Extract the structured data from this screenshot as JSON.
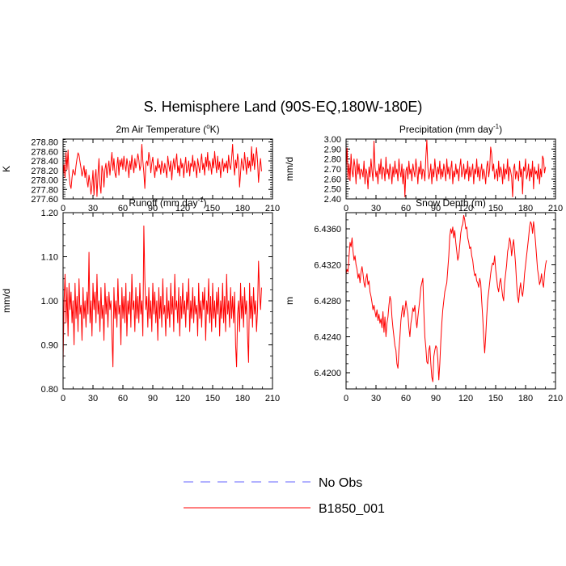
{
  "title": "S. Hemisphere Land (90S-EQ,180W-180E)",
  "colors": {
    "model": "#ff0000",
    "obs": "#6666ff",
    "axis": "#000000"
  },
  "legend": {
    "placement": "bottom-center",
    "entries": [
      {
        "label": "No Obs",
        "style": "dashed",
        "color": "#6666ff"
      },
      {
        "label": "B1850_001",
        "style": "solid",
        "color": "#ff0000"
      }
    ]
  },
  "chart_data": [
    {
      "type": "line",
      "title": "2m Air Temperature (",
      "title_sup": "o",
      "title_suffix": "K)",
      "ylabel": "K",
      "xlim": [
        0,
        210
      ],
      "ylim": [
        277.6,
        278.86
      ],
      "xticks": [
        0,
        30,
        60,
        90,
        120,
        150,
        180,
        210
      ],
      "yticks": [
        277.6,
        277.8,
        278.0,
        278.2,
        278.4,
        278.6,
        278.8
      ],
      "ytick_labels": [
        "277.60",
        "277.80",
        "278.00",
        "278.20",
        "278.40",
        "278.60",
        "278.80"
      ],
      "series": [
        {
          "name": "B1850_001",
          "values": [
            278.1,
            278.32,
            278.05,
            278.58,
            278.22,
            278.63,
            278.12,
            277.9,
            277.82,
            278.05,
            278.22,
            278.15,
            278.1,
            278.3,
            278.45,
            278.57,
            278.52,
            278.38,
            278.25,
            278.08,
            278.18,
            278.3,
            278.05,
            278.22,
            277.98,
            277.85,
            278.1,
            277.95,
            277.7,
            277.9,
            278.2,
            277.68,
            278.05,
            278.22,
            277.65,
            278.1,
            278.45,
            277.9,
            277.72,
            278.3,
            278.18,
            277.85,
            278.22,
            278.35,
            278.05,
            278.25,
            278.4,
            278.1,
            278.35,
            278.58,
            278.2,
            278.45,
            278.15,
            278.05,
            278.3,
            278.48,
            278.1,
            278.42,
            278.28,
            278.45,
            278.22,
            278.5,
            278.32,
            278.18,
            278.45,
            278.3,
            278.05,
            278.4,
            278.22,
            278.52,
            278.3,
            278.15,
            278.45,
            278.25,
            278.38,
            278.55,
            278.42,
            278.2,
            278.3,
            278.75,
            278.4,
            278.15,
            277.82,
            278.35,
            278.4,
            278.3,
            278.58,
            278.45,
            278.15,
            278.35,
            278.48,
            278.22,
            278.05,
            278.3,
            278.18,
            278.45,
            278.25,
            278.32,
            278.12,
            278.4,
            278.28,
            278.15,
            278.35,
            278.22,
            278.05,
            278.5,
            278.32,
            278.18,
            278.4,
            278.0,
            278.28,
            278.45,
            278.22,
            278.38,
            278.55,
            278.15,
            278.3,
            278.08,
            278.45,
            278.25,
            278.35,
            278.05,
            278.3,
            278.48,
            278.15,
            278.22,
            278.4,
            278.08,
            278.35,
            278.28,
            278.52,
            278.18,
            278.4,
            278.25,
            278.05,
            278.45,
            278.3,
            278.15,
            278.38,
            278.55,
            278.22,
            278.35,
            278.1,
            278.48,
            278.28,
            278.58,
            278.2,
            278.4,
            278.3,
            278.12,
            278.45,
            278.25,
            278.6,
            278.35,
            278.15,
            278.5,
            278.22,
            278.38,
            278.05,
            278.3,
            278.45,
            278.18,
            278.35,
            278.25,
            278.4,
            278.15,
            278.52,
            278.3,
            278.22,
            278.45,
            278.75,
            278.35,
            278.1,
            278.42,
            278.25,
            278.55,
            278.38,
            277.85,
            278.15,
            278.45,
            278.3,
            278.2,
            278.58,
            278.35,
            278.12,
            278.48,
            278.25,
            278.4,
            278.18,
            278.7,
            278.3,
            278.55,
            278.22,
            278.45,
            278.68,
            278.4,
            277.95,
            278.25,
            278.45,
            278.18
          ]
        }
      ]
    },
    {
      "type": "line",
      "title": "Precipitation (mm day",
      "title_sup": "-1",
      "title_suffix": ")",
      "ylabel": "mm/d",
      "xlim": [
        0,
        210
      ],
      "ylim": [
        2.4,
        3.0
      ],
      "xticks": [
        0,
        30,
        60,
        90,
        120,
        150,
        180,
        210
      ],
      "yticks": [
        2.4,
        2.5,
        2.6,
        2.7,
        2.8,
        2.9,
        3.0
      ],
      "ytick_labels": [
        "2.40",
        "2.50",
        "2.60",
        "2.70",
        "2.80",
        "2.90",
        "3.00"
      ],
      "series": [
        {
          "name": "B1850_001",
          "values": [
            2.7,
            2.91,
            2.6,
            2.75,
            2.58,
            2.85,
            2.68,
            2.62,
            2.8,
            2.72,
            2.55,
            2.8,
            2.65,
            2.75,
            2.6,
            2.7,
            2.68,
            2.62,
            2.78,
            2.55,
            2.7,
            2.65,
            2.5,
            2.72,
            2.62,
            2.8,
            2.68,
            2.58,
            2.98,
            2.72,
            2.62,
            2.68,
            2.55,
            2.75,
            2.65,
            2.8,
            2.6,
            2.72,
            2.7,
            2.58,
            2.82,
            2.65,
            2.7,
            2.6,
            2.75,
            2.68,
            2.55,
            2.72,
            2.62,
            2.78,
            2.65,
            2.7,
            2.58,
            2.8,
            2.68,
            2.62,
            2.75,
            2.55,
            2.7,
            2.42,
            2.68,
            2.72,
            2.6,
            2.78,
            2.65,
            2.7,
            2.58,
            2.75,
            2.68,
            2.62,
            2.8,
            2.7,
            2.55,
            2.72,
            2.65,
            2.78,
            2.6,
            2.7,
            2.68,
            2.58,
            2.82,
            2.99,
            2.72,
            2.6,
            2.65,
            2.75,
            2.55,
            2.7,
            2.62,
            2.8,
            2.68,
            2.58,
            2.72,
            2.65,
            2.78,
            2.6,
            2.7,
            2.62,
            2.75,
            2.68,
            2.58,
            2.8,
            2.65,
            2.72,
            2.6,
            2.7,
            2.78,
            2.55,
            2.68,
            2.62,
            2.75,
            2.65,
            2.7,
            2.58,
            2.72,
            2.8,
            2.62,
            2.68,
            2.75,
            2.6,
            2.7,
            2.65,
            2.78,
            2.58,
            2.72,
            2.62,
            2.68,
            2.75,
            2.55,
            2.7,
            2.65,
            2.8,
            2.62,
            2.72,
            2.58,
            2.68,
            2.75,
            2.6,
            2.7,
            2.65,
            2.55,
            2.72,
            2.78,
            2.62,
            2.7,
            2.92,
            2.85,
            2.68,
            2.75,
            2.6,
            2.65,
            2.7,
            2.58,
            2.78,
            2.62,
            2.72,
            2.68,
            2.55,
            2.75,
            2.6,
            2.7,
            2.65,
            2.8,
            2.58,
            2.72,
            2.68,
            2.62,
            2.42,
            2.7,
            2.75,
            2.6,
            2.68,
            2.65,
            2.58,
            2.78,
            2.62,
            2.7,
            2.45,
            2.72,
            2.68,
            2.8,
            2.6,
            2.65,
            2.75,
            2.58,
            2.7,
            2.62,
            2.78,
            2.5,
            2.72,
            2.65,
            2.68,
            2.6,
            2.75,
            2.55,
            2.7,
            2.62,
            2.83,
            2.8,
            2.66,
            2.72
          ]
        }
      ]
    },
    {
      "type": "line",
      "title": "Runoff (mm day",
      "title_sup": "-1",
      "title_suffix": ")",
      "ylabel": "mm/d",
      "xlim": [
        0,
        210
      ],
      "ylim": [
        0.8,
        1.2
      ],
      "xticks": [
        0,
        30,
        60,
        90,
        120,
        150,
        180,
        210
      ],
      "yticks": [
        0.8,
        0.9,
        1.0,
        1.1,
        1.2
      ],
      "ytick_labels": [
        "0.80",
        "0.90",
        "1.00",
        "1.10",
        "1.20"
      ],
      "series": [
        {
          "name": "B1850_001",
          "values": [
            0.86,
            1.0,
            1.06,
            0.95,
            1.03,
            0.92,
            1.04,
            0.98,
            1.02,
            0.95,
            1.0,
            0.9,
            1.04,
            0.96,
            1.01,
            0.93,
            1.05,
            0.97,
            0.99,
            0.91,
            1.03,
            0.96,
            1.0,
            0.94,
            1.02,
            0.97,
            1.11,
            0.95,
            1.0,
            0.92,
            1.04,
            0.98,
            1.02,
            0.95,
            1.06,
            0.97,
            1.0,
            0.93,
            1.03,
            0.96,
            0.99,
            0.91,
            1.04,
            0.97,
            1.01,
            0.94,
            1.02,
            0.98,
            1.0,
            0.92,
            0.85,
            1.03,
            0.96,
            1.0,
            0.94,
            1.05,
            0.97,
            0.99,
            0.9,
            1.03,
            0.96,
            1.01,
            0.95,
            1.04,
            0.92,
            1.0,
            0.97,
            1.02,
            0.94,
            1.06,
            0.98,
            1.0,
            0.93,
            1.03,
            0.96,
            1.01,
            0.95,
            1.04,
            0.97,
            1.0,
            0.92,
            1.17,
            1.05,
            0.98,
            1.01,
            0.94,
            1.03,
            0.96,
            1.0,
            0.93,
            1.04,
            0.97,
            1.02,
            0.95,
            1.0,
            0.91,
            1.03,
            0.96,
            1.01,
            0.94,
            1.05,
            0.97,
            0.99,
            0.92,
            1.03,
            0.96,
            1.0,
            0.94,
            1.04,
            0.97,
            1.01,
            0.93,
            1.06,
            0.98,
            1.0,
            0.95,
            1.03,
            0.92,
            1.01,
            0.96,
            1.04,
            0.97,
            1.0,
            0.94,
            1.02,
            0.98,
            1.05,
            0.93,
            1.0,
            0.96,
            1.03,
            0.95,
            1.01,
            0.97,
            0.99,
            0.92,
            1.04,
            0.96,
            1.0,
            0.94,
            1.02,
            0.98,
            1.03,
            0.91,
            1.0,
            0.97,
            1.05,
            0.95,
            1.01,
            0.93,
            1.04,
            0.96,
            1.0,
            0.94,
            1.02,
            0.97,
            1.03,
            0.92,
            1.0,
            0.96,
            1.04,
            0.95,
            1.01,
            0.93,
            1.06,
            0.97,
            1.0,
            0.94,
            1.03,
            0.96,
            1.01,
            0.95,
            1.02,
            0.9,
            0.85,
            0.97,
            1.0,
            0.93,
            1.04,
            0.96,
            1.01,
            0.94,
            1.03,
            0.97,
            1.0,
            0.92,
            0.86,
            1.04,
            0.96,
            1.01,
            0.94,
            1.03,
            0.97,
            1.0,
            0.93,
            0.98,
            1.09,
            1.02,
            0.98,
            1.03
          ]
        }
      ]
    },
    {
      "type": "line",
      "title": "Snow Depth (m)",
      "title_sup": "",
      "title_suffix": "",
      "ylabel": "m",
      "xlim": [
        0,
        210
      ],
      "ylim": [
        6.4182,
        6.4378
      ],
      "xticks": [
        0,
        30,
        60,
        90,
        120,
        150,
        180,
        210
      ],
      "yticks": [
        6.42,
        6.424,
        6.428,
        6.432,
        6.436
      ],
      "ytick_labels": [
        "6.4200",
        "6.4240",
        "6.4280",
        "6.4320",
        "6.4360"
      ],
      "series": [
        {
          "name": "B1850_001",
          "values": [
            6.431,
            6.4315,
            6.4312,
            6.433,
            6.4345,
            6.434,
            6.435,
            6.4335,
            6.4325,
            6.433,
            6.432,
            6.4315,
            6.4305,
            6.431,
            6.43,
            6.4312,
            6.4318,
            6.431,
            6.43,
            6.4295,
            6.4305,
            6.431,
            6.4298,
            6.4302,
            6.429,
            6.4285,
            6.4278,
            6.427,
            6.4275,
            6.4268,
            6.4262,
            6.427,
            6.4258,
            6.4265,
            6.4255,
            6.426,
            6.425,
            6.4268,
            6.4245,
            6.4262,
            6.424,
            6.4255,
            6.4262,
            6.4275,
            6.4285,
            6.428,
            6.4262,
            6.425,
            6.424,
            6.423,
            6.4225,
            6.421,
            6.4205,
            6.4225,
            6.424,
            6.4258,
            6.4268,
            6.4275,
            6.4262,
            6.427,
            6.428,
            6.4272,
            6.4265,
            6.425,
            6.424,
            6.4255,
            6.4262,
            6.4272,
            6.4268,
            6.4275,
            6.426,
            6.425,
            6.4262,
            6.4272,
            6.4282,
            6.4295,
            6.43,
            6.4305,
            6.4268,
            6.424,
            6.4228,
            6.4212,
            6.421,
            6.4225,
            6.423,
            6.421,
            6.4195,
            6.419,
            6.4218,
            6.4225,
            6.423,
            6.4228,
            6.4215,
            6.4192,
            6.421,
            6.4235,
            6.4255,
            6.427,
            6.428,
            6.429,
            6.4295,
            6.43,
            6.4315,
            6.433,
            6.4352,
            6.436,
            6.4355,
            6.4362,
            6.435,
            6.4358,
            6.4345,
            6.4335,
            6.4325,
            6.433,
            6.4342,
            6.4355,
            6.4362,
            6.4365,
            6.4375,
            6.437,
            6.436,
            6.4362,
            6.435,
            6.4345,
            6.4338,
            6.434,
            6.433,
            6.4325,
            6.4315,
            6.4308,
            6.431,
            6.4302,
            6.43,
            6.4295,
            6.4305,
            6.43,
            6.428,
            6.4262,
            6.424,
            6.4222,
            6.424,
            6.4262,
            6.428,
            6.429,
            6.43,
            6.431,
            6.4318,
            6.4322,
            6.432,
            6.433,
            6.4315,
            6.4305,
            6.4295,
            6.429,
            6.43,
            6.4305,
            6.4295,
            6.4285,
            6.428,
            6.43,
            6.431,
            6.432,
            6.4335,
            6.434,
            6.435,
            6.4345,
            6.433,
            6.434,
            6.4348,
            6.4335,
            6.432,
            6.43,
            6.4285,
            6.4278,
            6.4292,
            6.43,
            6.429,
            6.4285,
            6.4295,
            6.431,
            6.432,
            6.433,
            6.434,
            6.435,
            6.4362,
            6.4368,
            6.4365,
            6.4355,
            6.4368,
            6.4358,
            6.4345,
            6.433,
            6.4315,
            6.4308,
            6.4298,
            6.4302,
            6.431,
            6.43,
            6.4295,
            6.431,
            6.432,
            6.4325
          ]
        }
      ]
    }
  ]
}
